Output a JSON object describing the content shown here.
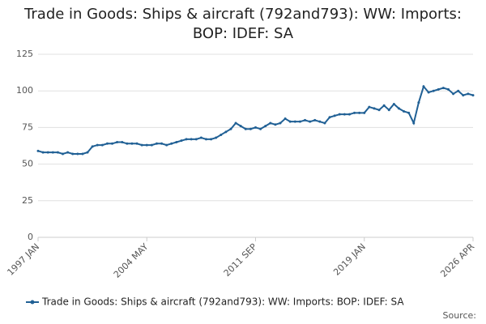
{
  "chart_data": {
    "type": "line",
    "title": "Trade in Goods: Ships & aircraft (792and793): WW: Imports: BOP: IDEF: SA",
    "source": "Source:",
    "categories": [
      "1997 JAN",
      null,
      null,
      null,
      null,
      null,
      null,
      null,
      null,
      null,
      null,
      null,
      null,
      null,
      null,
      null,
      null,
      null,
      null,
      null,
      null,
      null,
      "2004 MAY",
      null,
      null,
      null,
      null,
      null,
      null,
      null,
      null,
      null,
      null,
      null,
      null,
      null,
      null,
      null,
      null,
      null,
      null,
      null,
      null,
      null,
      "2011 SEP",
      null,
      null,
      null,
      null,
      null,
      null,
      null,
      null,
      null,
      null,
      null,
      null,
      null,
      null,
      null,
      null,
      null,
      null,
      null,
      null,
      null,
      "2019 JAN",
      null,
      null,
      null,
      null,
      null,
      null,
      null,
      null,
      null,
      null,
      null,
      null,
      null,
      null,
      null,
      null,
      null,
      null,
      null,
      null,
      null,
      "2026 APR"
    ],
    "series": [
      {
        "name": "Trade in Goods: Ships & aircraft (792and793): WW: Imports: BOP: IDEF: SA",
        "color": "#206095",
        "values": [
          59,
          58,
          58,
          58,
          58,
          57,
          58,
          57,
          57,
          57,
          58,
          62,
          63,
          63,
          64,
          64,
          65,
          65,
          64,
          64,
          64,
          63,
          63,
          63,
          64,
          64,
          63,
          64,
          65,
          66,
          67,
          67,
          67,
          68,
          67,
          67,
          68,
          70,
          72,
          74,
          78,
          76,
          74,
          74,
          75,
          74,
          76,
          78,
          77,
          78,
          81,
          79,
          79,
          79,
          80,
          79,
          80,
          79,
          78,
          82,
          83,
          84,
          84,
          84,
          85,
          85,
          85,
          89,
          88,
          87,
          90,
          87,
          91,
          88,
          86,
          85,
          78,
          92,
          103,
          99,
          100,
          101,
          102,
          101,
          98,
          100,
          97,
          98,
          97
        ]
      }
    ],
    "ylim": [
      0,
      125
    ],
    "yticks": [
      0,
      25,
      50,
      75,
      100,
      125
    ],
    "grid": true
  }
}
